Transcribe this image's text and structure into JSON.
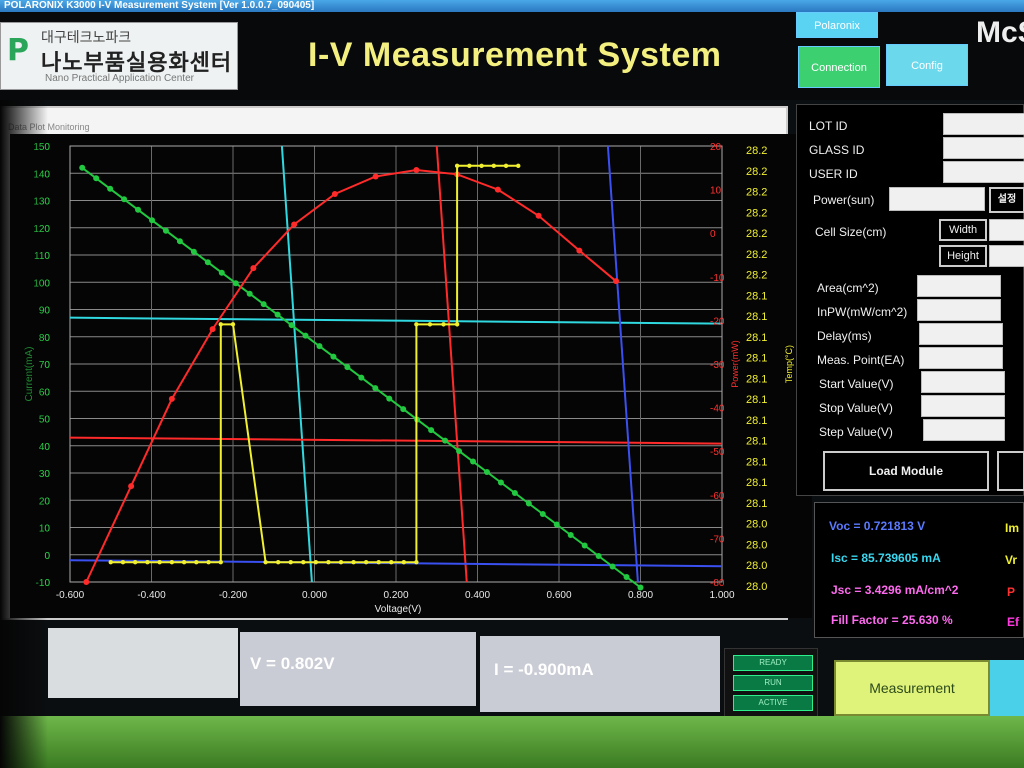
{
  "window": {
    "title": "POLARONIX K3000 I-V Measurement System [Ver 1.0.0.7_090405]"
  },
  "header": {
    "logo_line1": "대구테크노파크",
    "logo_line2": "나노부품실용화센터",
    "logo_line3": "Nano Practical Application Center",
    "logo_mark": "P",
    "app_title": "I-V Measurement System",
    "btn_polaronix": "Polaronix",
    "btn_connection": "Connection",
    "btn_config": "Config",
    "brand": "McS"
  },
  "tabs": {
    "label": "Data Plot  Monitoring"
  },
  "chart_data": {
    "type": "line",
    "xlabel": "Voltage(V)",
    "ylabel_left": "Current(mA)",
    "ylabel_power": "Power(mW)",
    "ylabel_temp": "Temp(°C)",
    "xlim": [
      -0.6,
      1.0
    ],
    "ylim_current": [
      -10,
      150
    ],
    "ylim_power": [
      -80,
      20
    ],
    "x_ticks": [
      "-0.600",
      "-0.400",
      "-0.200",
      "0.000",
      "0.200",
      "0.400",
      "0.600",
      "0.800",
      "1.000"
    ],
    "y_current_ticks": [
      "150",
      "140",
      "130",
      "120",
      "110",
      "100",
      "90",
      "80",
      "70",
      "60",
      "50",
      "40",
      "30",
      "20",
      "10",
      "0",
      "-10"
    ],
    "y_power_ticks": [
      "20",
      "10",
      "0",
      "-10",
      "-20",
      "-30",
      "-40",
      "-50",
      "-60",
      "-70",
      "-80"
    ],
    "y_temp_ticks": [
      "28.2",
      "28.2",
      "28.2",
      "28.2",
      "28.2",
      "28.2",
      "28.2",
      "28.1",
      "28.1",
      "28.1",
      "28.1",
      "28.1",
      "28.1",
      "28.1",
      "28.1",
      "28.1",
      "28.1",
      "28.1",
      "28.0",
      "28.0",
      "28.0",
      "28.0"
    ],
    "series": [
      {
        "color": "#22c840",
        "x": [
          -0.57,
          0.8
        ],
        "y": [
          142,
          -12
        ]
      },
      {
        "color": "#ff2a2a",
        "x": [
          -0.56,
          -0.45,
          -0.35,
          -0.25,
          -0.15,
          -0.05,
          0.05,
          0.15,
          0.25,
          0.35,
          0.45,
          0.55,
          0.65,
          0.74
        ],
        "y": [
          -80,
          -58,
          -38,
          -22,
          -8,
          2,
          9,
          13,
          14.5,
          13.5,
          10,
          4,
          -4,
          -11
        ]
      },
      {
        "color": "#f0f030",
        "x": [
          -0.5,
          -0.23,
          -0.23,
          -0.2,
          -0.12,
          0.25,
          0.25,
          0.35,
          0.35,
          0.5
        ],
        "y": [
          28.0,
          28.0,
          28.12,
          28.12,
          28.0,
          28.0,
          28.12,
          28.12,
          28.2,
          28.2
        ]
      }
    ],
    "cursor_lines": [
      {
        "color": "#30d8e0",
        "orientation": "vertical",
        "x": -0.08
      },
      {
        "color": "#30d8e0",
        "orientation": "horizontal",
        "y": 87
      },
      {
        "color": "#ff2a2a",
        "orientation": "vertical",
        "x": 0.3
      },
      {
        "color": "#ff2a2a",
        "orientation": "horizontal",
        "y": 43
      },
      {
        "color": "#3a50f0",
        "orientation": "vertical",
        "x": 0.72
      },
      {
        "color": "#3a50f0",
        "orientation": "horizontal",
        "y": -2
      }
    ],
    "grid": true
  },
  "readout": {
    "voltage": "V =  0.802V",
    "current": "I =  -0.900mA"
  },
  "status": {
    "s1": "READY",
    "s2": "RUN",
    "s3": "ACTIVE"
  },
  "params": {
    "lot_id": "LOT ID",
    "glass_id": "GLASS ID",
    "user_id": "USER ID",
    "power": "Power(sun)",
    "power_btn": "설정",
    "cell_size": "Cell Size(cm)",
    "width": "Width",
    "height": "Height",
    "area": "Area(cm^2)",
    "inpw": "InPW(mW/cm^2)",
    "delay": "Delay(ms)",
    "meas_point": "Meas. Point(EA)",
    "start_value": "Start Value(V)",
    "stop_value": "Stop Value(V)",
    "step_value": "Step Value(V)",
    "load_module": "Load Module"
  },
  "results": {
    "voc": "Voc = 0.721813 V",
    "isc": "Isc = 85.739605 mA",
    "jsc": "Jsc = 3.4296 mA/cm^2",
    "ff": "Fill Factor = 25.630 %",
    "imp_stub": "Im",
    "vmp_stub": "Vr",
    "p_stub": "P",
    "e_stub": "Ef"
  },
  "actions": {
    "measurement": "Measurement"
  },
  "colors": {
    "accent_yellow": "#f4f080",
    "green": "#22c840",
    "red": "#ff2a2a",
    "cyan": "#30d8e0",
    "blue": "#3a50f0"
  }
}
